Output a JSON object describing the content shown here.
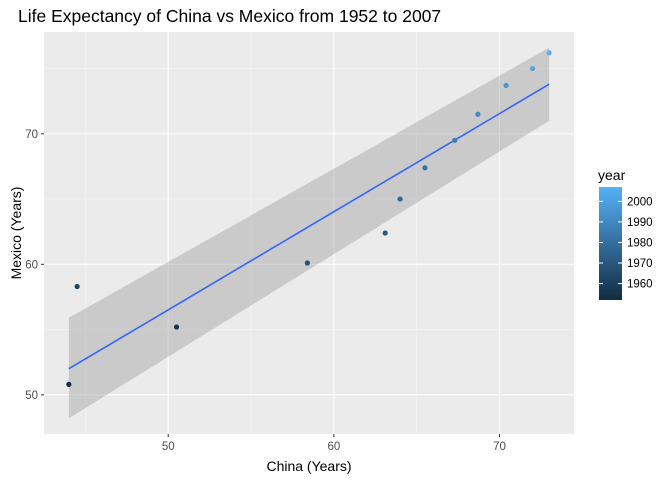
{
  "chart_data": {
    "type": "scatter",
    "title": "Life Expectancy of China vs Mexico from 1952 to 2007",
    "xlabel": "China (Years)",
    "ylabel": "Mexico (Years)",
    "xlim": [
      42.5,
      74.5
    ],
    "ylim": [
      47,
      77.8
    ],
    "xticks": [
      50,
      60,
      70
    ],
    "yticks": [
      50,
      60,
      70
    ],
    "grid": true,
    "panel_background": "#ebebeb",
    "legend": {
      "title": "year",
      "position": "right",
      "labels": [
        "1960",
        "1970",
        "1980",
        "1990",
        "2000"
      ],
      "color_low": "#132b43",
      "color_high": "#56b1f7",
      "range": [
        1952,
        2007
      ]
    },
    "series": [
      {
        "points": [
          {
            "x": 44.0,
            "y": 50.8,
            "year": 1952
          },
          {
            "x": 44.5,
            "y": 58.3,
            "year": 1962
          },
          {
            "x": 50.5,
            "y": 55.2,
            "year": 1957
          },
          {
            "x": 58.4,
            "y": 60.1,
            "year": 1967
          },
          {
            "x": 63.1,
            "y": 62.4,
            "year": 1972
          },
          {
            "x": 64.0,
            "y": 65.0,
            "year": 1977
          },
          {
            "x": 65.5,
            "y": 67.4,
            "year": 1982
          },
          {
            "x": 67.3,
            "y": 69.5,
            "year": 1987
          },
          {
            "x": 68.7,
            "y": 71.5,
            "year": 1992
          },
          {
            "x": 70.4,
            "y": 73.7,
            "year": 1997
          },
          {
            "x": 72.0,
            "y": 75.0,
            "year": 2002
          },
          {
            "x": 73.0,
            "y": 76.2,
            "year": 2007
          }
        ]
      }
    ],
    "smooth": {
      "method": "lm",
      "line_color": "#3366ff",
      "band_color": "#999999",
      "x": [
        44.0,
        73.0
      ],
      "y": [
        52.0,
        73.8
      ],
      "band_lower": [
        48.2,
        71.0
      ],
      "band_upper": [
        55.9,
        76.6
      ]
    }
  }
}
